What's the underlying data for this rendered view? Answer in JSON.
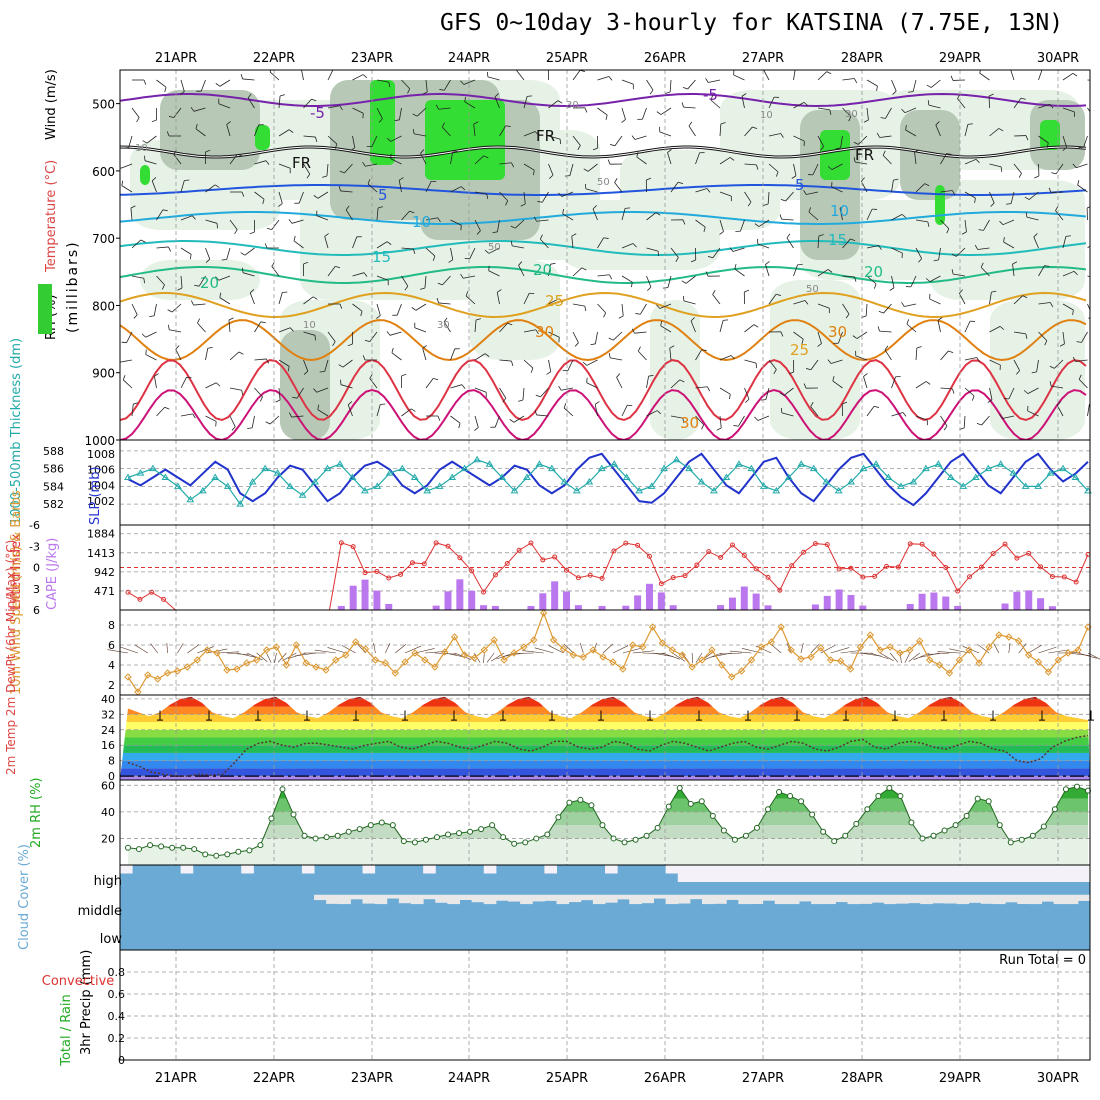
{
  "title": "GFS 0~10day 3-hourly for KATSINA (7.75E, 13N)",
  "dates": [
    "21APR",
    "22APR",
    "23APR",
    "24APR",
    "25APR",
    "26APR",
    "27APR",
    "28APR",
    "29APR",
    "30APR"
  ],
  "colors": {
    "grid": "#999999",
    "rh": "#33cc33",
    "cape": "#bb77ee",
    "li": "#dd3333",
    "thk": "#22aaaa",
    "slp": "#2233cc",
    "wind10": "#dd9933",
    "cloud": "#6aaad4",
    "freeze": "#111111",
    "purple": "#7722aa"
  },
  "chart_data": [
    {
      "panel": "upper-air",
      "type": "heatmap",
      "ylabel_parts": [
        "RH (%)",
        "Temperature (°C)",
        "Wind (m/s)"
      ],
      "yunits": "(millibars)",
      "y_ticks": [
        500,
        600,
        700,
        800,
        900,
        1000
      ],
      "ylim": [
        450,
        1000
      ],
      "contour_labels": [
        "-5",
        "5",
        "10",
        "15",
        "20",
        "25",
        "30",
        "FR",
        "10",
        "30",
        "50"
      ]
    },
    {
      "panel": "thickness-slp",
      "type": "line",
      "ylabel_left": "1000-500mb Thickness (dm)",
      "ylabel_right": "SLP (mb)",
      "left_ticks": [
        582,
        584,
        586,
        588
      ],
      "right_ticks": [
        1002,
        1004,
        1006,
        1008
      ],
      "series": [
        {
          "name": "Thickness",
          "values": [
            585,
            585.5,
            586,
            585,
            584,
            582.5,
            583.5,
            585,
            584,
            582,
            584.5,
            586,
            585.5,
            584,
            583,
            584.5,
            586,
            586.5,
            585,
            583.5,
            584,
            585.5,
            586,
            585,
            583.5,
            584,
            585,
            586,
            587,
            586.5,
            585,
            583.5,
            585,
            586.5,
            586,
            584.5,
            583.5,
            584.5,
            586,
            586.5,
            585,
            583.5,
            584,
            586,
            587,
            586,
            584.5,
            583.5,
            585,
            586.5,
            586,
            584,
            583.5,
            585,
            586.5,
            586,
            584.5,
            583.5,
            584.5,
            586,
            586.5,
            585,
            584,
            584.5,
            586,
            586.5,
            585,
            584,
            585,
            586,
            586.5,
            585.5,
            584,
            584,
            585.5,
            586,
            585,
            583.5
          ]
        },
        {
          "name": "SLP",
          "values": [
            1004.8,
            1004,
            1005,
            1006,
            1005,
            1004,
            1005.5,
            1007,
            1006,
            1003,
            1002,
            1003,
            1005,
            1006.5,
            1006,
            1004,
            1002,
            1003,
            1005,
            1006.5,
            1007,
            1006,
            1004,
            1003,
            1004,
            1006,
            1007,
            1006,
            1005,
            1004,
            1005,
            1006.5,
            1006,
            1004,
            1003,
            1004,
            1006,
            1007.5,
            1008,
            1006,
            1004,
            1002,
            1001.8,
            1003,
            1005,
            1007,
            1008,
            1006,
            1004,
            1003,
            1005,
            1007,
            1007.5,
            1005,
            1003,
            1002,
            1004,
            1006,
            1007.5,
            1008,
            1006,
            1004,
            1002.5,
            1001.5,
            1003,
            1005,
            1007,
            1008,
            1006,
            1004,
            1003,
            1005,
            1007,
            1008,
            1006,
            1004.5,
            1005.5,
            1007
          ]
        }
      ]
    },
    {
      "panel": "cape-li",
      "type": "bar",
      "ylabel_left": "Lifted Index",
      "ylabel_right": "CAPE (J/kg)",
      "left_ticks": [
        6,
        3,
        0,
        -3,
        -6
      ],
      "right_ticks": [
        471,
        942,
        1413,
        1884
      ],
      "cape": [
        0,
        0,
        0,
        0,
        0,
        0,
        0,
        0,
        0,
        0,
        0,
        0,
        0,
        0,
        0,
        0,
        0,
        0,
        100,
        600,
        750,
        0,
        150,
        0,
        0,
        0,
        0,
        0,
        0,
        0,
        0,
        100,
        0,
        0,
        100,
        0,
        0,
        0,
        0,
        0,
        100,
        0,
        0,
        0,
        0,
        0,
        0,
        0,
        0,
        0,
        0,
        0,
        0,
        0,
        0,
        0,
        0,
        0,
        0,
        0,
        0,
        0,
        0,
        0,
        0,
        0,
        0,
        0,
        0,
        0,
        0,
        0,
        0,
        0,
        0,
        0,
        0,
        0,
        0,
        0,
        0,
        0
      ],
      "lifted_index": [
        4,
        3.5,
        3,
        5,
        6,
        6,
        6,
        6,
        6,
        6,
        6,
        5,
        5,
        6,
        6,
        6,
        6,
        6,
        3,
        -3,
        -4,
        -3,
        -2,
        -1,
        0,
        1,
        0,
        -1,
        -2,
        -2,
        -1,
        0,
        0,
        -1,
        -2,
        -2,
        -1,
        -1,
        -2,
        -2,
        -1
      ]
    },
    {
      "panel": "wind10m",
      "type": "line",
      "ylabel": "10m Wind Speed (m/s) & Barbs",
      "y_ticks": [
        2,
        4,
        6,
        8
      ],
      "ylim": [
        1,
        9.5
      ],
      "values": [
        2.8,
        1.3,
        3,
        2.6,
        3.2,
        3.4,
        3.8,
        4.5,
        5.5,
        5.2,
        3.5,
        3.6,
        4.2,
        4.5,
        5.5,
        5.8,
        4,
        6,
        4.2,
        3.8,
        3.5,
        4.5,
        5,
        6.3,
        5.6,
        4.5,
        4.2,
        3.2,
        4.3,
        5.2,
        4.5,
        3.8,
        5.3,
        6.8,
        5,
        4.7,
        5.5,
        6.5,
        4.5,
        5.2,
        5.8,
        6.5,
        9.2,
        6.5,
        5.6,
        5,
        4.8,
        5.5,
        4.8,
        4.3,
        3.6,
        6,
        5.8,
        7.8,
        6.2,
        5.5,
        5,
        3.8,
        4.5,
        5.5,
        4,
        2.8,
        3.4,
        4.5,
        5.8,
        6.3,
        7.8,
        5.5,
        4.6,
        4.8,
        5.7,
        4.5,
        4.4,
        3.6,
        5.8,
        7,
        5.5,
        5.8,
        5.2,
        5.5,
        6.4,
        4.5,
        4,
        3.2,
        4.5,
        5.5,
        4.2,
        5.8,
        7,
        6.8,
        6.4,
        5,
        4.3,
        3.3,
        4.5,
        5.2,
        5.5,
        7.8
      ]
    },
    {
      "panel": "temp2m",
      "type": "area",
      "ylabel": "2m Temp 2m DewPt (6hr Min/Max) (°C)",
      "y_ticks": [
        0,
        8,
        16,
        24,
        32,
        40
      ],
      "ylim": [
        -2,
        42
      ],
      "temp": [
        35,
        33,
        31,
        33,
        37,
        40,
        41,
        38,
        33,
        31,
        30,
        33,
        37,
        40,
        41,
        38,
        33,
        31,
        30,
        33,
        37,
        40,
        41,
        38,
        33,
        31,
        30,
        33,
        37,
        40,
        41,
        38,
        33,
        31,
        30,
        33,
        37,
        40,
        41,
        38,
        33,
        31,
        30,
        33,
        37,
        40,
        41,
        38,
        33,
        31,
        30,
        33,
        37,
        40,
        41,
        38,
        33,
        31,
        30,
        33,
        37,
        40,
        41,
        38,
        33,
        31,
        30,
        33,
        37,
        40,
        41,
        38,
        33,
        31,
        30,
        33,
        37,
        40,
        41,
        38,
        33,
        31,
        30,
        33,
        37,
        40,
        41,
        38,
        33,
        31,
        30,
        29
      ],
      "dewpt": [
        7,
        5,
        2,
        1,
        0,
        0,
        1,
        0.5,
        1,
        7,
        14,
        17,
        18,
        16,
        15,
        17,
        17,
        16,
        15,
        14,
        16,
        17,
        18,
        15,
        14,
        16,
        18,
        17,
        15,
        14,
        16,
        18,
        17,
        14,
        13,
        15,
        18,
        18,
        15,
        14,
        15,
        18,
        17,
        14,
        13,
        16,
        18,
        17,
        15,
        13,
        15,
        17,
        18,
        15,
        14,
        16,
        18,
        17,
        14,
        13,
        15,
        18,
        19,
        15,
        14,
        17,
        18,
        17,
        15,
        14,
        16,
        18,
        17,
        14,
        13,
        8,
        7,
        9,
        15,
        18,
        20,
        21
      ]
    },
    {
      "panel": "rh2m",
      "type": "area",
      "ylabel": "2m RH (%)",
      "y_ticks": [
        20,
        40,
        60
      ],
      "ylim": [
        0,
        64
      ],
      "values": [
        13,
        12,
        15,
        14,
        13,
        13,
        12,
        8,
        7,
        8,
        10,
        11,
        15,
        35,
        57,
        38,
        22,
        20,
        21,
        22,
        25,
        27,
        30,
        32,
        30,
        18,
        17,
        19,
        21,
        23,
        24,
        25,
        27,
        30,
        21,
        16,
        17,
        20,
        23,
        36,
        47,
        49,
        45,
        30,
        20,
        17,
        19,
        22,
        28,
        44,
        58,
        46,
        48,
        37,
        26,
        19,
        22,
        28,
        42,
        55,
        52,
        48,
        38,
        25,
        18,
        22,
        31,
        42,
        52,
        58,
        52,
        32,
        20,
        22,
        26,
        30,
        37,
        50,
        48,
        30,
        17,
        19,
        22,
        29,
        42,
        57,
        59,
        56
      ]
    },
    {
      "panel": "cloud",
      "type": "bar",
      "ylabel": "Cloud Cover (%)",
      "levels": [
        "high",
        "middle",
        "low"
      ]
    },
    {
      "panel": "precip",
      "type": "bar",
      "ylabel_main": "3hr Precip (mm)",
      "ylabel_side1": "Total / Rain",
      "ylabel_side2": "Convective",
      "y_ticks": [
        0,
        0.2,
        0.4,
        0.6,
        0.8
      ],
      "ylim": [
        0,
        1
      ],
      "annotation": "Run Total = 0"
    }
  ]
}
